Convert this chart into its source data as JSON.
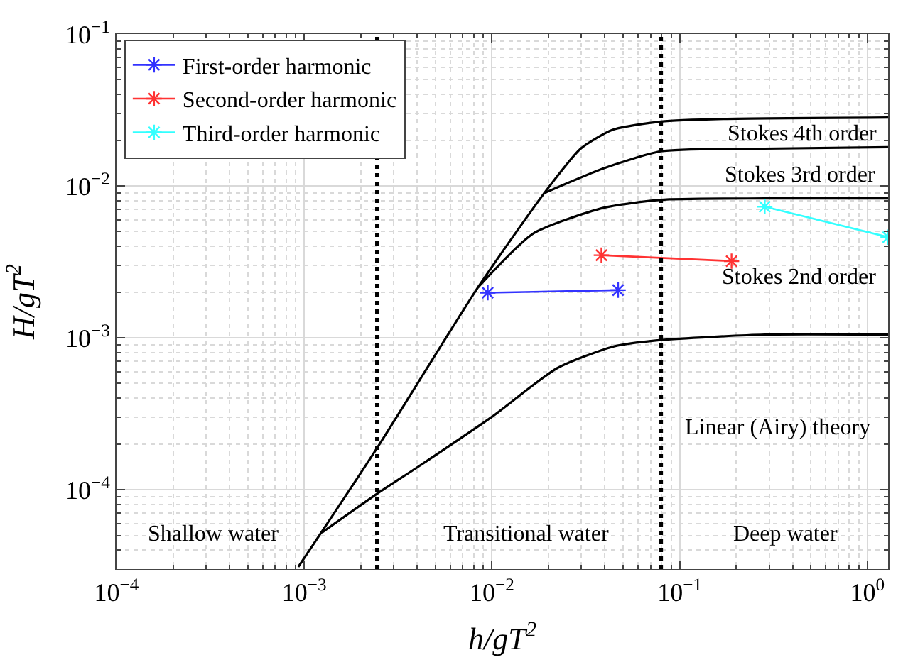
{
  "chart_data": {
    "type": "line",
    "xlabel": "h/gT$^{2}$",
    "ylabel": "H/gT$^{2}$",
    "log": "xy",
    "grid": true,
    "legend": "top left",
    "xlim": [
      0.0001,
      1.29
    ],
    "ylim": [
      3e-05,
      0.1
    ],
    "xticks": [
      {
        "value": 0.0001,
        "label": "10$^{−4}$"
      },
      {
        "value": 0.001,
        "label": "10$^{−3}$"
      },
      {
        "value": 0.01,
        "label": "10$^{−2}$"
      },
      {
        "value": 0.1,
        "label": "10$^{−1}$"
      },
      {
        "value": 1,
        "label": "10$^{0}$"
      }
    ],
    "yticks": [
      {
        "value": 0.0001,
        "label": "10$^{−4}$"
      },
      {
        "value": 0.001,
        "label": "10$^{−3}$"
      },
      {
        "value": 0.01,
        "label": "10$^{−2}$"
      },
      {
        "value": 0.1,
        "label": "10$^{−1}$"
      }
    ],
    "series": [
      {
        "color": "#000000",
        "marker": "none",
        "x": [
          0.00093,
          0.00245,
          0.00843,
          0.019,
          0.0297,
          0.0439,
          0.0794,
          0.171,
          1.29
        ],
        "values": [
          3.1e-05,
          0.000189,
          0.00215,
          0.00897,
          0.0176,
          0.0234,
          0.0265,
          0.0276,
          0.0282
        ]
      },
      {
        "color": "#000000",
        "marker": "none",
        "x": [
          0.019,
          0.0389,
          0.0794,
          0.284,
          1.29
        ],
        "values": [
          0.00897,
          0.013,
          0.0169,
          0.0176,
          0.018
        ]
      },
      {
        "color": "#000000",
        "marker": "none",
        "x": [
          0.00843,
          0.0166,
          0.0389,
          0.0794,
          0.284,
          1.29
        ],
        "values": [
          0.00215,
          0.00486,
          0.00716,
          0.0081,
          0.00827,
          0.00827
        ]
      },
      {
        "color": "#000000",
        "marker": "none",
        "x": [
          0.00124,
          0.00245,
          0.00406,
          0.01,
          0.0222,
          0.0439,
          0.0794,
          0.284,
          1.29
        ],
        "values": [
          5.21e-05,
          9.42e-05,
          0.000142,
          0.000302,
          0.00063,
          0.000873,
          0.000967,
          0.00105,
          0.00105
        ]
      },
      {
        "name": "First-order harmonic",
        "color": "#3333ff",
        "marker": "cross",
        "x": [
          0.0095,
          0.047
        ],
        "values": [
          0.00198,
          0.00206
        ]
      },
      {
        "name": "Second-order harmonic",
        "color": "#ff3333",
        "marker": "cross",
        "x": [
          0.0383,
          0.189
        ],
        "values": [
          0.0035,
          0.0032
        ]
      },
      {
        "name": "Third-order harmonic",
        "color": "#33ffff",
        "marker": "cross",
        "x": [
          0.284,
          1.29
        ],
        "values": [
          0.0073,
          0.0046
        ]
      }
    ],
    "ref_lines": [
      {
        "axis": "x",
        "value": 0.00245,
        "color": "#000000",
        "line_style": "dotted"
      },
      {
        "axis": "x",
        "value": 0.0794,
        "color": "#000000",
        "line_style": "dotted"
      }
    ],
    "annotations": [
      "Stokes 4th order",
      "Stokes 3rd order",
      "Stokes 2nd order",
      "Linear (Airy) theory",
      "Shallow water",
      "Transitional water",
      "Deep water"
    ]
  }
}
